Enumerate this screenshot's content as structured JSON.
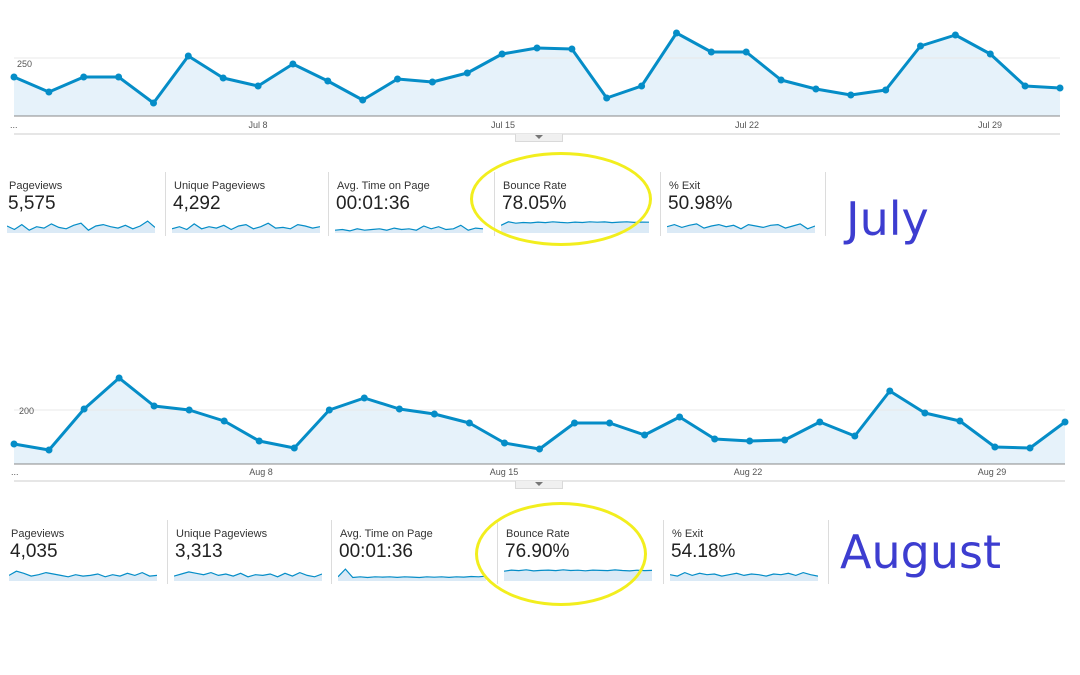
{
  "colors": {
    "line": "#058dc7",
    "area": "#e6f2fa",
    "spark_area": "#dbeaf6",
    "grid": "#e8e8e8",
    "month_text": "#3d3dd0",
    "highlight": "#f2ee1e"
  },
  "july": {
    "chart_label": "250",
    "ticks": [
      "...",
      "Jul 8",
      "Jul 15",
      "Jul 22",
      "Jul 29"
    ],
    "metrics": [
      {
        "label": "Pageviews",
        "value": "5,575",
        "spark": [
          0.5,
          0.25,
          0.6,
          0.2,
          0.45,
          0.35,
          0.65,
          0.4,
          0.3,
          0.55,
          0.7,
          0.2,
          0.5,
          0.6,
          0.45,
          0.35,
          0.55,
          0.3,
          0.5,
          0.85,
          0.4
        ]
      },
      {
        "label": "Unique Pageviews",
        "value": "4,292",
        "spark": [
          0.3,
          0.45,
          0.25,
          0.65,
          0.3,
          0.45,
          0.35,
          0.55,
          0.25,
          0.5,
          0.6,
          0.3,
          0.45,
          0.7,
          0.35,
          0.4,
          0.3,
          0.6,
          0.5,
          0.35,
          0.45
        ]
      },
      {
        "label": "Avg. Time on Page",
        "value": "00:01:36",
        "spark": [
          0.2,
          0.25,
          0.15,
          0.3,
          0.2,
          0.25,
          0.3,
          0.2,
          0.35,
          0.25,
          0.3,
          0.2,
          0.5,
          0.3,
          0.45,
          0.25,
          0.3,
          0.55,
          0.2,
          0.35,
          0.3
        ]
      },
      {
        "label": "Bounce Rate",
        "value": "78.05%",
        "spark": [
          0.55,
          0.8,
          0.7,
          0.75,
          0.72,
          0.78,
          0.74,
          0.8,
          0.76,
          0.73,
          0.78,
          0.75,
          0.8,
          0.77,
          0.79,
          0.74,
          0.78,
          0.8,
          0.76,
          0.78,
          0.77
        ]
      },
      {
        "label": "% Exit",
        "value": "50.98%",
        "spark": [
          0.45,
          0.6,
          0.4,
          0.55,
          0.65,
          0.35,
          0.5,
          0.6,
          0.45,
          0.55,
          0.3,
          0.6,
          0.5,
          0.4,
          0.55,
          0.6,
          0.35,
          0.5,
          0.65,
          0.3,
          0.5
        ]
      }
    ],
    "month_label": "July"
  },
  "august": {
    "chart_label": "200",
    "ticks": [
      "...",
      "Aug 8",
      "Aug 15",
      "Aug 22",
      "Aug 29"
    ],
    "metrics": [
      {
        "label": "Pageviews",
        "value": "4,035",
        "spark": [
          0.4,
          0.7,
          0.55,
          0.35,
          0.45,
          0.6,
          0.5,
          0.4,
          0.3,
          0.45,
          0.35,
          0.4,
          0.5,
          0.3,
          0.45,
          0.35,
          0.55,
          0.4,
          0.6,
          0.35,
          0.4
        ]
      },
      {
        "label": "Unique Pageviews",
        "value": "3,313",
        "spark": [
          0.35,
          0.5,
          0.65,
          0.55,
          0.45,
          0.6,
          0.4,
          0.5,
          0.35,
          0.55,
          0.3,
          0.45,
          0.4,
          0.5,
          0.3,
          0.55,
          0.35,
          0.6,
          0.4,
          0.3,
          0.5
        ]
      },
      {
        "label": "Avg. Time on Page",
        "value": "00:01:36",
        "spark": [
          0.3,
          0.85,
          0.25,
          0.3,
          0.25,
          0.3,
          0.28,
          0.3,
          0.26,
          0.3,
          0.28,
          0.25,
          0.3,
          0.27,
          0.3,
          0.26,
          0.3,
          0.28,
          0.32,
          0.3,
          0.35
        ]
      },
      {
        "label": "Bounce Rate",
        "value": "76.90%",
        "spark": [
          0.7,
          0.78,
          0.74,
          0.8,
          0.72,
          0.76,
          0.78,
          0.74,
          0.8,
          0.75,
          0.77,
          0.73,
          0.78,
          0.76,
          0.74,
          0.79,
          0.75,
          0.72,
          0.77,
          0.74,
          0.76
        ]
      },
      {
        "label": "% Exit",
        "value": "54.18%",
        "spark": [
          0.45,
          0.35,
          0.6,
          0.4,
          0.55,
          0.45,
          0.5,
          0.35,
          0.45,
          0.55,
          0.4,
          0.5,
          0.45,
          0.35,
          0.5,
          0.45,
          0.55,
          0.4,
          0.6,
          0.45,
          0.35
        ]
      }
    ],
    "month_label": "August"
  }
}
